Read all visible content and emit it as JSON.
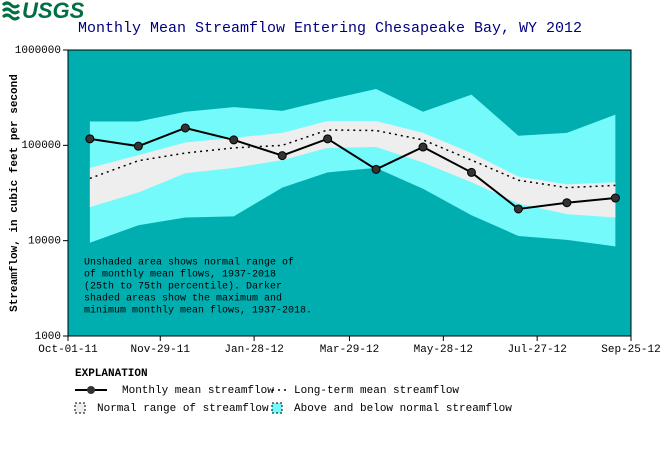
{
  "logo": "USGS",
  "chart_data": {
    "type": "line",
    "title": "Monthly Mean Streamflow Entering Chesapeake Bay, WY 2012",
    "ylabel": "Streamflow, in cubic feet per second",
    "log_y": true,
    "plot_background": "#00aeb0",
    "x": [
      "2011-10-15",
      "2011-11-15",
      "2011-12-15",
      "2012-01-15",
      "2012-02-15",
      "2012-03-15",
      "2012-04-15",
      "2012-05-15",
      "2012-06-15",
      "2012-07-15",
      "2012-08-15",
      "2012-09-15"
    ],
    "xlim": [
      "2011-10-01",
      "2012-09-25"
    ],
    "xticks": [
      {
        "value": "2011-10-01",
        "label": "Oct-01-11"
      },
      {
        "value": "2011-11-29",
        "label": "Nov-29-11"
      },
      {
        "value": "2012-01-28",
        "label": "Jan-28-12"
      },
      {
        "value": "2012-03-29",
        "label": "Mar-29-12"
      },
      {
        "value": "2012-05-28",
        "label": "May-28-12"
      },
      {
        "value": "2012-07-27",
        "label": "Jul-27-12"
      },
      {
        "value": "2012-09-25",
        "label": "Sep-25-12"
      }
    ],
    "ylim": [
      1000,
      1000000
    ],
    "yticks": [
      1000,
      10000,
      100000,
      1000000
    ],
    "series": [
      {
        "name": "Monthly mean streamflow",
        "style": "line-marker",
        "color": "#000000",
        "values": [
          117000,
          98000,
          152000,
          114000,
          78000,
          117000,
          56000,
          96000,
          52000,
          21500,
          25000,
          28000
        ]
      },
      {
        "name": "Long-term mean streamflow",
        "style": "dotted",
        "color": "#000000",
        "values": [
          45000,
          69000,
          83000,
          94000,
          100000,
          145000,
          143000,
          114000,
          70000,
          43000,
          36000,
          38000
        ]
      },
      {
        "name": "Normal range of streamflow",
        "style": "band",
        "color": "#eeeeee",
        "low": [
          22500,
          32000,
          51000,
          58000,
          70000,
          94000,
          96000,
          66000,
          41000,
          24500,
          19000,
          17500
        ],
        "high": [
          58000,
          79000,
          107000,
          120000,
          135000,
          180000,
          180000,
          135000,
          83000,
          47000,
          39000,
          41000
        ]
      },
      {
        "name": "Above and below normal streamflow",
        "style": "band",
        "color": "#74fafa",
        "low": [
          9500,
          14500,
          17500,
          18000,
          36000,
          52000,
          58000,
          35000,
          18500,
          11200,
          10200,
          8700
        ],
        "high": [
          178000,
          178000,
          225000,
          252000,
          230000,
          300000,
          390000,
          225000,
          340000,
          126000,
          135000,
          210000
        ]
      }
    ],
    "annotation": [
      "Unshaded area shows normal range of",
      "of monthly mean flows, 1937-2018",
      "(25th to 75th percentile).  Darker",
      "shaded areas show the maximum and",
      "minimum monthly mean flows, 1937-2018."
    ],
    "legend_title": "EXPLANATION"
  }
}
